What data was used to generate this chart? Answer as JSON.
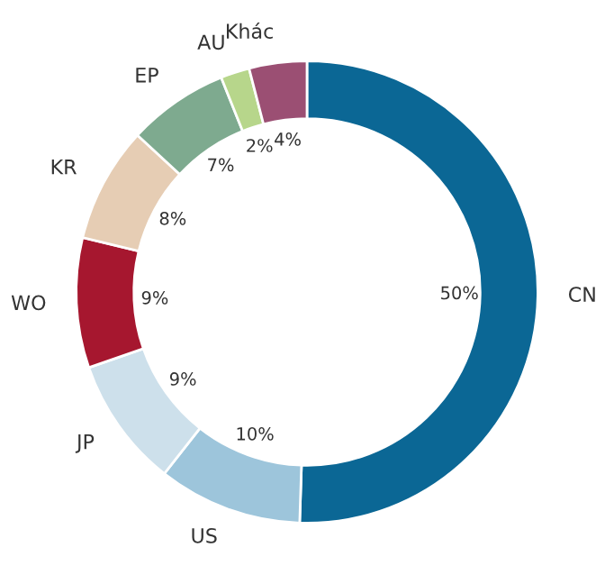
{
  "chart_data": {
    "type": "donut",
    "categories": [
      "CN",
      "US",
      "JP",
      "WO",
      "KR",
      "EP",
      "AU",
      "Khác"
    ],
    "values": [
      50,
      10,
      9,
      9,
      8,
      7,
      2,
      4
    ],
    "value_labels": [
      "50%",
      "10%",
      "9%",
      "9%",
      "8%",
      "7%",
      "2%",
      "4%"
    ],
    "colors": [
      "#0b6795",
      "#9dc5db",
      "#cde0eb",
      "#a6172f",
      "#e6cdb4",
      "#7eaa8f",
      "#b7d68b",
      "#9b4f73"
    ],
    "legend": false
  }
}
